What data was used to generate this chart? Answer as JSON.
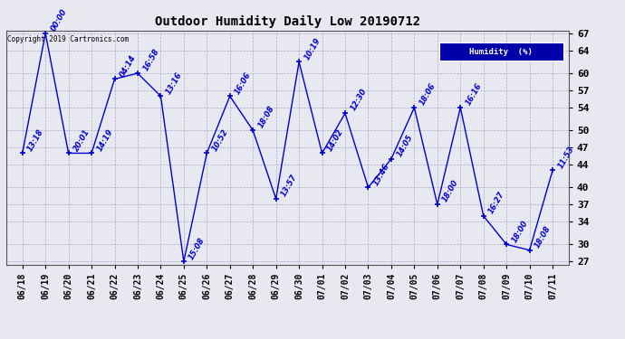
{
  "title": "Outdoor Humidity Daily Low 20190712",
  "copyright_text": "Copyright 2019 Cartronics.com",
  "legend_label": "Humidity  (%)",
  "background_color": "#e8e8f0",
  "line_color": "#0000cc",
  "text_color": "#0000cc",
  "grid_color": "#aaaacc",
  "x_labels": [
    "06/18",
    "06/19",
    "06/20",
    "06/21",
    "06/22",
    "06/23",
    "06/24",
    "06/25",
    "06/26",
    "06/27",
    "06/28",
    "06/29",
    "06/30",
    "07/01",
    "07/02",
    "07/03",
    "07/04",
    "07/05",
    "07/06",
    "07/07",
    "07/08",
    "07/09",
    "07/10",
    "07/11"
  ],
  "y_values": [
    46,
    67,
    46,
    46,
    59,
    60,
    56,
    27,
    46,
    56,
    50,
    38,
    62,
    46,
    53,
    40,
    45,
    54,
    37,
    54,
    35,
    30,
    29,
    43
  ],
  "point_labels": [
    "13:18",
    "00:00",
    "20:01",
    "14:19",
    "04:14",
    "16:58",
    "13:16",
    "15:08",
    "10:52",
    "16:06",
    "18:08",
    "13:57",
    "10:19",
    "14:02",
    "12:30",
    "13:46",
    "14:05",
    "18:06",
    "18:00",
    "16:16",
    "16:27",
    "18:00",
    "18:08",
    "11:53"
  ],
  "ylim_min": 27,
  "ylim_max": 67,
  "yticks": [
    27,
    30,
    34,
    37,
    40,
    44,
    47,
    50,
    54,
    57,
    60,
    64,
    67
  ]
}
